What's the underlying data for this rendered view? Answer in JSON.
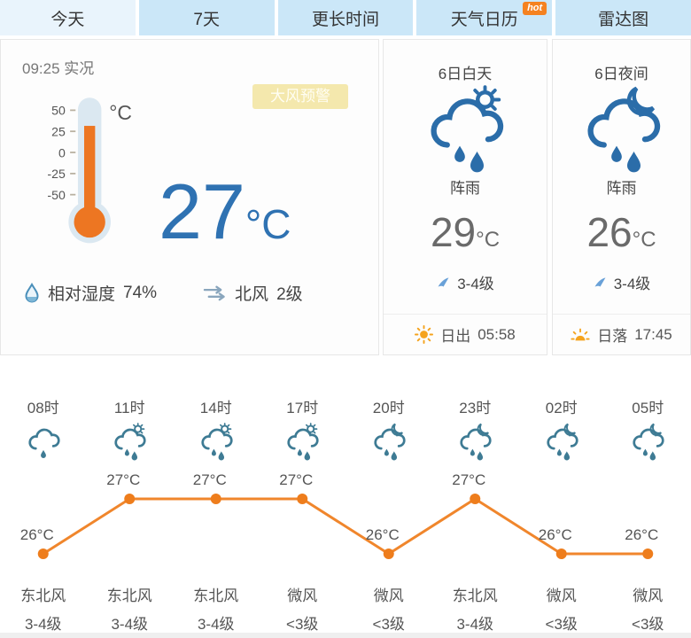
{
  "tabs": {
    "items": [
      {
        "label": "今天",
        "active": true
      },
      {
        "label": "7天"
      },
      {
        "label": "更长时间"
      },
      {
        "label": "天气日历",
        "badge": "hot"
      },
      {
        "label": "雷达图"
      }
    ]
  },
  "current": {
    "time_label": "09:25 实况",
    "alert_badge": "大风预警",
    "thermometer": {
      "scale": [
        "50",
        "25",
        "0",
        "-25",
        "-50"
      ],
      "unit": "°C"
    },
    "temperature": "27",
    "temperature_unit": "°C",
    "humidity_icon": "droplet-icon",
    "humidity_label": "相对湿度",
    "humidity_value": "74%",
    "wind_icon": "wind-arrows-icon",
    "wind_label": "北风",
    "wind_level": "2级"
  },
  "day": {
    "title": "6日白天",
    "icon": "shower-day-icon",
    "condition": "阵雨",
    "temperature": "29",
    "temperature_unit": "°C",
    "wind_level": "3-4级",
    "sun_icon": "sunrise-icon",
    "sun_label": "日出",
    "sun_time": "05:58"
  },
  "night": {
    "title": "6日夜间",
    "icon": "shower-night-icon",
    "condition": "阵雨",
    "temperature": "26",
    "temperature_unit": "°C",
    "wind_level": "3-4级",
    "sun_icon": "sunset-icon",
    "sun_label": "日落",
    "sun_time": "17:45"
  },
  "hourly": {
    "hours": [
      {
        "time": "08时",
        "icon": "cloud-rain-icon",
        "wind_dir": "东北风",
        "wind_level": "3-4级"
      },
      {
        "time": "11时",
        "icon": "cloud-sun-rain-icon",
        "wind_dir": "东北风",
        "wind_level": "3-4级"
      },
      {
        "time": "14时",
        "icon": "cloud-sun-rain-icon",
        "wind_dir": "东北风",
        "wind_level": "3-4级"
      },
      {
        "time": "17时",
        "icon": "cloud-sun-rain-icon",
        "wind_dir": "微风",
        "wind_level": "<3级"
      },
      {
        "time": "20时",
        "icon": "cloud-moon-rain-icon",
        "wind_dir": "微风",
        "wind_level": "<3级"
      },
      {
        "time": "23时",
        "icon": "cloud-moon-rain-icon",
        "wind_dir": "东北风",
        "wind_level": "3-4级"
      },
      {
        "time": "02时",
        "icon": "cloud-moon-rain-icon",
        "wind_dir": "微风",
        "wind_level": "<3级"
      },
      {
        "time": "05时",
        "icon": "cloud-moon-rain-icon",
        "wind_dir": "微风",
        "wind_level": "<3级"
      }
    ]
  },
  "chart_data": {
    "type": "line",
    "x": [
      "08时",
      "11时",
      "14时",
      "17时",
      "20时",
      "23时",
      "02时",
      "05时"
    ],
    "values": [
      26,
      27,
      27,
      27,
      26,
      27,
      26,
      26
    ],
    "unit": "°C",
    "title": "",
    "xlabel": "",
    "ylabel": "",
    "ylim": [
      25.5,
      27.5
    ],
    "grid": false,
    "legend": false,
    "line_color": "#f0862c",
    "point_color": "#ee7d1c",
    "label_color": "#555555"
  },
  "colors": {
    "accent_blue": "#2f72b2",
    "icon_blue": "#2b6da9",
    "icon_teal": "#3e7b94",
    "thermo_orange": "#ed7622",
    "tab_inactive_bg": "#cbe7f8",
    "tab_active_bg": "#e9f4fc",
    "alert_bg": "#f4e8ad",
    "hot_badge": "#f58220",
    "sun_orange": "#f5a31d"
  }
}
